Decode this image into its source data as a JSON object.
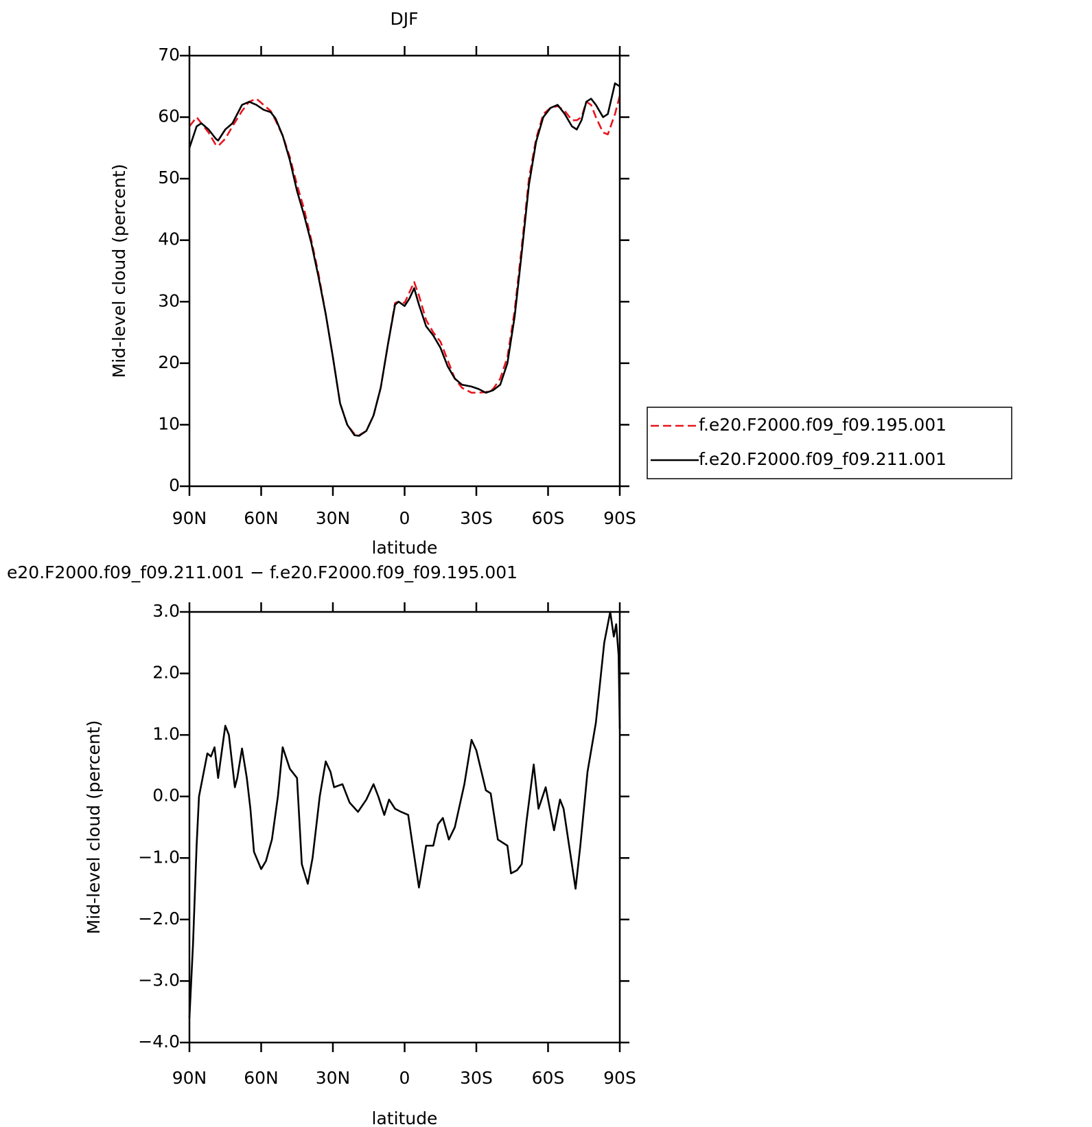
{
  "chart_data": [
    {
      "type": "line",
      "title": "DJF",
      "xlabel": "latitude",
      "ylabel": "Mid-level cloud (percent)",
      "x": [
        90,
        87,
        85,
        82,
        79,
        78,
        75,
        72,
        68,
        65,
        62,
        59,
        56,
        54,
        51,
        48,
        45,
        42,
        39,
        36,
        33,
        30,
        27,
        24,
        21,
        19,
        16,
        13,
        10,
        7,
        4,
        2.5,
        0,
        -2,
        -4,
        -6,
        -9,
        -12,
        -15,
        -18,
        -21,
        -24,
        -28,
        -31,
        -34,
        -37,
        -40,
        -43,
        -46,
        -49,
        -52,
        -55,
        -58,
        -61,
        -64,
        -67,
        -70,
        -72,
        -74,
        -76,
        -78,
        -80,
        -83,
        -85,
        -88,
        -90
      ],
      "series": [
        {
          "name": "f.e20.F2000.f09_f09.195.001",
          "color": "#e8141c",
          "line_style": "dashed",
          "values": [
            58.5,
            60,
            59,
            57.5,
            55.5,
            55.3,
            56.5,
            58.5,
            61,
            62.5,
            63,
            62,
            61,
            59.5,
            57,
            53.5,
            49,
            45,
            40,
            34.5,
            28,
            21,
            13.5,
            10,
            8.5,
            8.3,
            9,
            11.5,
            16,
            23,
            29.8,
            30,
            29.8,
            31.5,
            33.2,
            31,
            27,
            25,
            23.5,
            20.5,
            17.5,
            16,
            15.2,
            15.2,
            15.3,
            15.8,
            17.5,
            21,
            28.5,
            39,
            50,
            56.5,
            60.5,
            61.5,
            61.8,
            61,
            59.5,
            59.5,
            60,
            62.5,
            62,
            60,
            57.5,
            57.2,
            60.5,
            63.5
          ]
        },
        {
          "name": "f.e20.F2000.f09_f09.211.001",
          "color": "#000000",
          "line_style": "solid",
          "values": [
            55,
            58.5,
            59,
            58,
            56.5,
            56.2,
            58,
            59,
            62,
            62.5,
            62,
            61.2,
            60.8,
            59.8,
            57,
            53,
            48,
            44,
            39.5,
            34,
            28,
            21,
            13.5,
            10,
            8.3,
            8.2,
            9,
            11.5,
            16,
            23,
            29.5,
            30,
            29.3,
            30.5,
            32.2,
            29.5,
            26,
            24.5,
            22.5,
            19.5,
            17.5,
            16.5,
            16.2,
            15.8,
            15.2,
            15.6,
            16.5,
            20,
            27.5,
            38,
            49,
            56,
            60,
            61.5,
            62,
            60.5,
            58.5,
            58,
            59.5,
            62.5,
            63,
            62,
            60,
            60.5,
            65.5,
            65
          ]
        }
      ],
      "xlim": [
        90,
        -90
      ],
      "xticks": [
        {
          "value": 90,
          "label": "90N"
        },
        {
          "value": 60,
          "label": "60N"
        },
        {
          "value": 30,
          "label": "30N"
        },
        0,
        {
          "value": -30,
          "label": "30S"
        },
        {
          "value": -60,
          "label": "60S"
        },
        {
          "value": -90,
          "label": "90S"
        }
      ],
      "ylim": [
        0,
        70
      ],
      "yticks": [
        0,
        10,
        20,
        30,
        40,
        50,
        60,
        70
      ]
    },
    {
      "type": "line",
      "title": "e20.F2000.f09_f09.211.001 − f.e20.F2000.f09_f09.195.001",
      "xlabel": "latitude",
      "ylabel": "Mid-level cloud (percent)",
      "x": [
        90,
        88.5,
        87,
        86,
        84,
        82.5,
        81,
        79.5,
        78,
        75,
        73.5,
        71,
        70,
        68,
        66,
        64.5,
        63,
        60,
        58,
        55.5,
        53,
        51,
        48,
        45,
        43,
        40.5,
        38.5,
        35.5,
        33,
        31,
        29.5,
        26,
        23,
        19.5,
        16,
        13,
        11,
        8.5,
        6.5,
        4,
        1.5,
        -1.5,
        -3,
        -6,
        -9,
        -12,
        -14,
        -16,
        -18.5,
        -21,
        -25,
        -28,
        -30,
        -34,
        -36,
        -39,
        -43,
        -44.5,
        -47,
        -49,
        -51,
        -54,
        -56,
        -59,
        -62.5,
        -65,
        -66.5,
        -69,
        -71.5,
        -73.5,
        -76.5,
        -80,
        -83.5,
        -86,
        -87.5,
        -88.5,
        -89.5,
        -90
      ],
      "color": "#000000",
      "values": [
        -3.6,
        -2.4,
        -0.8,
        0,
        0.4,
        0.7,
        0.65,
        0.8,
        0.3,
        1.15,
        1.0,
        0.15,
        0.3,
        0.78,
        0.3,
        -0.2,
        -0.9,
        -1.18,
        -1.05,
        -0.7,
        0,
        0.8,
        0.45,
        0.3,
        -1.1,
        -1.42,
        -1.0,
        0,
        0.57,
        0.4,
        0.15,
        0.2,
        -0.1,
        -0.25,
        -0.05,
        0.2,
        0,
        -0.3,
        -0.05,
        -0.2,
        -0.25,
        -0.3,
        -0.7,
        -1.48,
        -0.8,
        -0.8,
        -0.45,
        -0.35,
        -0.7,
        -0.5,
        0.2,
        0.92,
        0.75,
        0.1,
        0.05,
        -0.7,
        -0.8,
        -1.25,
        -1.2,
        -1.1,
        -0.4,
        0.52,
        -0.2,
        0.15,
        -0.55,
        -0.05,
        -0.2,
        -0.85,
        -1.5,
        -0.8,
        0.4,
        1.2,
        2.5,
        3.0,
        2.6,
        2.8,
        2.3,
        1.1
      ],
      "xlim": [
        90,
        -90
      ],
      "xticks": [
        {
          "value": 90,
          "label": "90N"
        },
        {
          "value": 60,
          "label": "60N"
        },
        {
          "value": 30,
          "label": "30N"
        },
        0,
        {
          "value": -30,
          "label": "30S"
        },
        {
          "value": -60,
          "label": "60S"
        },
        {
          "value": -90,
          "label": "90S"
        }
      ],
      "ylim": [
        -4,
        3
      ],
      "yticks": [
        {
          "value": -4,
          "label": "−4.0"
        },
        {
          "value": -3,
          "label": "−3.0"
        },
        {
          "value": -2,
          "label": "−2.0"
        },
        {
          "value": -1,
          "label": "−1.0"
        },
        {
          "value": 0,
          "label": "0.0"
        },
        {
          "value": 1,
          "label": "1.0"
        },
        {
          "value": 2,
          "label": "2.0"
        },
        {
          "value": 3,
          "label": "3.0"
        }
      ]
    }
  ]
}
